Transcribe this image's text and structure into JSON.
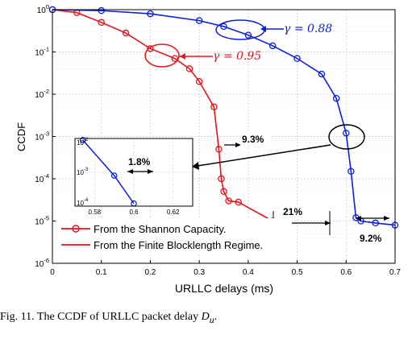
{
  "chart_data": {
    "type": "line",
    "xlabel": "URLLC delays (ms)",
    "ylabel": "CCDF",
    "xlim": [
      0,
      0.7
    ],
    "ylim_log10": [
      -6,
      0
    ],
    "yscale": "log",
    "grid": true,
    "x_ticks": [
      "0",
      "0.1",
      "0.2",
      "0.3",
      "0.4",
      "0.5",
      "0.6",
      "0.7"
    ],
    "y_ticks": [
      "10^0",
      "10^-1",
      "10^-2",
      "10^-3",
      "10^-4",
      "10^-5",
      "10^-6"
    ],
    "legend_position": "bottom-center",
    "series": [
      {
        "name": "From the Shannon Capacity.",
        "color": "#e8121b",
        "marker": "circle",
        "x": [
          0.0,
          0.05,
          0.1,
          0.15,
          0.2,
          0.25,
          0.28,
          0.3,
          0.33,
          0.34,
          0.345,
          0.35,
          0.36,
          0.38,
          0.45
        ],
        "y": [
          1.0,
          0.85,
          0.5,
          0.28,
          0.12,
          0.07,
          0.04,
          0.02,
          0.005,
          0.0005,
          0.0001,
          5e-05,
          3e-05,
          2.8e-05,
          1e-05
        ]
      },
      {
        "name": "From the Finite Blocklength Regime.",
        "color": "#0d1fe0",
        "marker": "circle",
        "x": [
          0.0,
          0.1,
          0.2,
          0.3,
          0.35,
          0.4,
          0.45,
          0.5,
          0.55,
          0.58,
          0.6,
          0.61,
          0.62,
          0.63,
          0.66,
          0.7
        ],
        "y": [
          1.0,
          0.95,
          0.8,
          0.55,
          0.4,
          0.25,
          0.14,
          0.07,
          0.03,
          0.008,
          0.0012,
          0.00015,
          1.2e-05,
          1e-05,
          9e-06,
          8e-06
        ]
      }
    ],
    "annotations": [
      {
        "text": "γ = 0.88",
        "color": "#0d1fe0"
      },
      {
        "text": "γ = 0.95",
        "color": "#e8121b"
      },
      {
        "text": "9.3%"
      },
      {
        "text": "21%"
      },
      {
        "text": "9.2%"
      },
      {
        "text": "1.8%"
      }
    ],
    "inset": {
      "x_ticks": [
        "0.58",
        "0.6",
        "0.62"
      ],
      "y_ticks": [
        "10^-2",
        "10^-3",
        "10^-4"
      ],
      "xlim": [
        0.57,
        0.63
      ],
      "ylim_log10": [
        -4,
        -2
      ],
      "series": [
        {
          "color": "#0d1fe0",
          "x": [
            0.574,
            0.59,
            0.6
          ],
          "y": [
            0.009,
            0.0008,
            0.00012
          ]
        }
      ]
    }
  },
  "caption": {
    "prefix": "Fig. 11.  The CCDF of URLLC packet delay ",
    "symbol": "D",
    "subscript": "u",
    "suffix": "."
  }
}
